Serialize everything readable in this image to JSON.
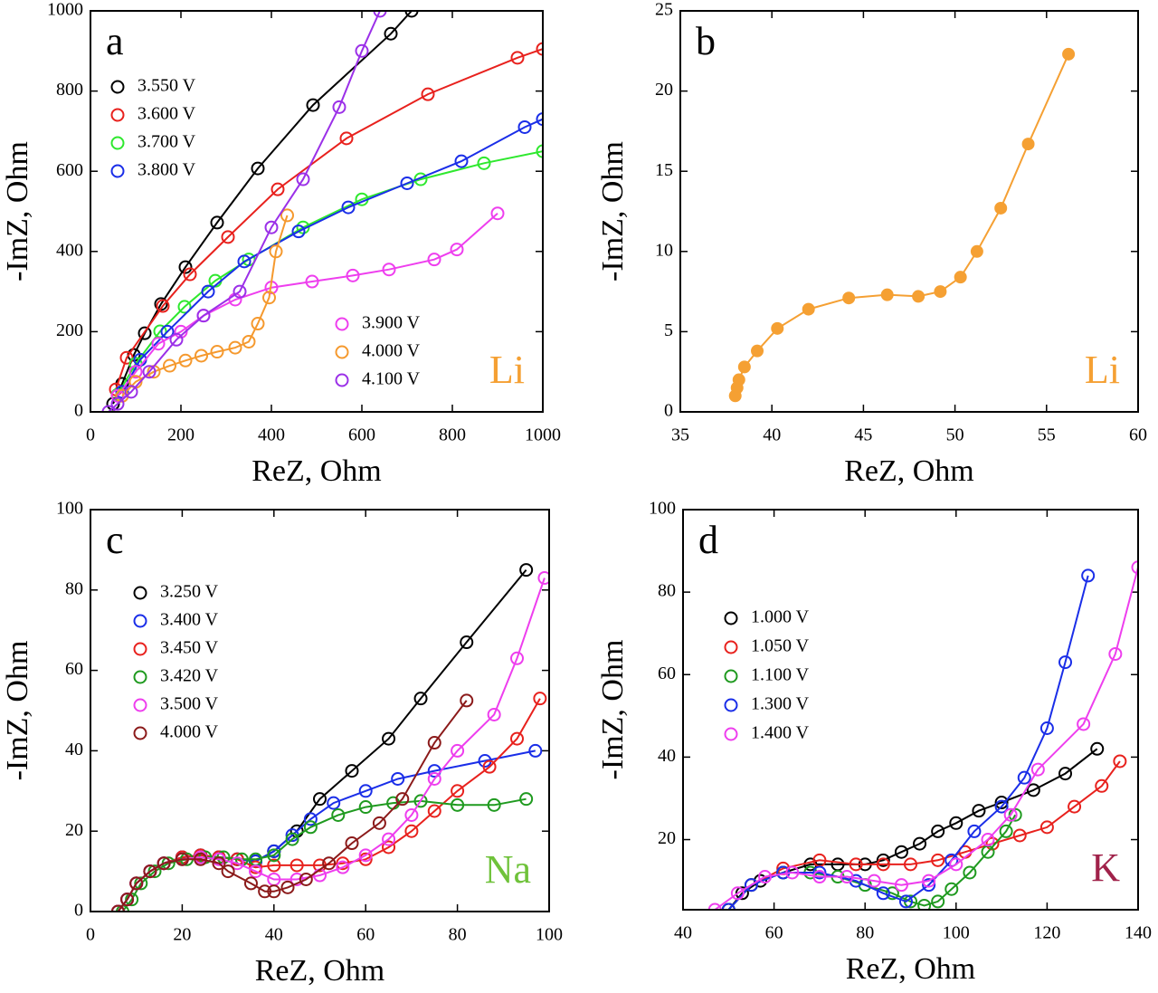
{
  "chart_data": [
    {
      "type": "line",
      "label": "a",
      "annotation": "Li",
      "annotation_color": "#f5a033",
      "marker": "open",
      "xlabel": "ReZ, Ohm",
      "ylabel": "-ImZ, Ohm",
      "xlim": [
        0,
        1000
      ],
      "xticks": [
        0,
        200,
        400,
        600,
        800,
        1000
      ],
      "ylim": [
        0,
        1000
      ],
      "yticks": [
        0,
        200,
        400,
        600,
        800,
        1000
      ],
      "series": [
        {
          "name": "3.550 V",
          "color": "#000000",
          "x": [
            50,
            70,
            96,
            120,
            156,
            210,
            280,
            370,
            492,
            664,
            710
          ],
          "values": [
            20,
            70,
            142,
            196,
            269,
            361,
            472,
            607,
            765,
            943,
            1000
          ]
        },
        {
          "name": "3.600 V",
          "color": "#e8211d",
          "x": [
            56,
            80,
            160,
            220,
            304,
            414,
            566,
            746,
            944,
            1000
          ],
          "values": [
            56,
            135,
            264,
            343,
            436,
            555,
            682,
            792,
            883,
            905
          ]
        },
        {
          "name": "3.700 V",
          "color": "#2ee82e",
          "x": [
            60,
            100,
            154,
            208,
            276,
            350,
            470,
            600,
            730,
            870,
            1000
          ],
          "values": [
            43,
            120,
            201,
            262,
            327,
            380,
            460,
            530,
            580,
            620,
            650
          ]
        },
        {
          "name": "3.800 V",
          "color": "#1a2ee8",
          "x": [
            70,
            110,
            170,
            260,
            340,
            460,
            570,
            700,
            820,
            960,
            1000
          ],
          "values": [
            50,
            130,
            200,
            300,
            375,
            450,
            510,
            570,
            625,
            710,
            730
          ]
        },
        {
          "name": "3.900 V",
          "color": "#ee3eee",
          "x": [
            60,
            100,
            150,
            200,
            250,
            320,
            400,
            490,
            580,
            660,
            760,
            810,
            900
          ],
          "values": [
            40,
            100,
            170,
            200,
            240,
            280,
            310,
            325,
            340,
            355,
            380,
            405,
            495
          ]
        },
        {
          "name": "4.000 V",
          "color": "#f5992e",
          "x": [
            70,
            100,
            140,
            175,
            210,
            245,
            280,
            320,
            350,
            370,
            395,
            410,
            435
          ],
          "values": [
            40,
            75,
            100,
            115,
            128,
            140,
            150,
            160,
            175,
            220,
            285,
            400,
            490
          ]
        },
        {
          "name": "4.100 V",
          "color": "#9b30e8",
          "x": [
            40,
            60,
            90,
            130,
            190,
            250,
            330,
            400,
            470,
            550,
            600,
            640
          ],
          "values": [
            0,
            20,
            50,
            100,
            180,
            240,
            300,
            460,
            580,
            760,
            900,
            1000
          ]
        }
      ]
    },
    {
      "type": "line",
      "label": "b",
      "annotation": "Li",
      "annotation_color": "#f5a033",
      "marker": "filled",
      "xlabel": "ReZ, Ohm",
      "ylabel": "-ImZ, Ohm",
      "xlim": [
        35,
        60
      ],
      "xticks": [
        35,
        40,
        45,
        50,
        55,
        60
      ],
      "ylim": [
        0,
        25
      ],
      "yticks": [
        0,
        5,
        10,
        15,
        20,
        25
      ],
      "series": [
        {
          "color": "#f5a033",
          "x": [
            38,
            38.1,
            38.2,
            38.5,
            39.2,
            40.3,
            42,
            44.2,
            46.3,
            48,
            49.2,
            50.3,
            51.2,
            52.5,
            54,
            56.2
          ],
          "values": [
            1,
            1.5,
            2,
            2.8,
            3.8,
            5.2,
            6.4,
            7.1,
            7.3,
            7.2,
            7.5,
            8.4,
            10,
            12.7,
            16.7,
            22.3
          ]
        }
      ]
    },
    {
      "type": "line",
      "label": "c",
      "annotation": "Na",
      "annotation_color": "#6fc23a",
      "marker": "open",
      "xlabel": "ReZ, Ohm",
      "ylabel": "-ImZ, Ohm",
      "xlim": [
        0,
        100
      ],
      "xticks": [
        0,
        20,
        40,
        60,
        80,
        100
      ],
      "ylim": [
        0,
        100
      ],
      "yticks": [
        0,
        20,
        40,
        60,
        80,
        100
      ],
      "series": [
        {
          "name": "3.250 V",
          "color": "#000000",
          "x": [
            6,
            8,
            10,
            13,
            16,
            20,
            24,
            28,
            32,
            36,
            40,
            45,
            50,
            57,
            65,
            72,
            82,
            95
          ],
          "values": [
            0,
            3,
            7,
            10,
            12,
            13.5,
            14,
            13.5,
            13,
            12.5,
            15,
            20,
            28,
            35,
            43,
            53,
            67,
            85
          ]
        },
        {
          "name": "3.400 V",
          "color": "#1a2ee8",
          "x": [
            6,
            8,
            10,
            13,
            16,
            20,
            24,
            28,
            32,
            36,
            40,
            44,
            48,
            53,
            60,
            67,
            75,
            86,
            97
          ],
          "values": [
            0,
            3,
            7,
            10,
            12,
            13.5,
            14,
            13.5,
            13,
            12.5,
            15,
            19,
            23,
            27,
            30,
            33,
            35,
            37.5,
            40
          ]
        },
        {
          "name": "3.450 V",
          "color": "#e8211d",
          "x": [
            6,
            8,
            10,
            13,
            16,
            20,
            24,
            28,
            32,
            36,
            40,
            45,
            50,
            55,
            60,
            65,
            70,
            75,
            80,
            87,
            93,
            98
          ],
          "values": [
            0,
            3,
            7,
            10,
            12,
            13.5,
            14,
            13.5,
            13,
            11,
            11.5,
            11.5,
            11.5,
            12,
            13,
            16,
            20,
            25,
            30,
            36,
            43,
            53
          ]
        },
        {
          "name": "3.420 V",
          "color": "#1f9a1f",
          "x": [
            7,
            9,
            11,
            14,
            17,
            21,
            25,
            29,
            33,
            36,
            40,
            44,
            48,
            54,
            60,
            66,
            72,
            80,
            88,
            95
          ],
          "values": [
            0,
            3,
            7,
            10,
            12,
            13,
            13.5,
            13.5,
            13,
            13,
            14,
            18,
            21,
            24,
            26,
            27,
            27.5,
            26.5,
            26.5,
            28
          ]
        },
        {
          "name": "3.500 V",
          "color": "#ee3eee",
          "x": [
            6,
            8,
            10,
            13,
            16,
            20,
            24,
            28,
            32,
            36,
            40,
            45,
            50,
            55,
            60,
            65,
            70,
            75,
            80,
            88,
            93,
            99
          ],
          "values": [
            0,
            3,
            7,
            10,
            12,
            13,
            13.5,
            13,
            12,
            10,
            8,
            8,
            9,
            11,
            14,
            18,
            24,
            33,
            40,
            49,
            63,
            83
          ]
        },
        {
          "name": "4.000 V",
          "color": "#8b1a1a",
          "x": [
            6,
            8,
            10,
            13,
            16,
            20,
            24,
            28,
            30,
            35,
            38,
            40,
            43,
            47,
            52,
            57,
            63,
            68,
            75,
            82
          ],
          "values": [
            0,
            3,
            7,
            10,
            12,
            13,
            13,
            12,
            10,
            7,
            5,
            5,
            6,
            8,
            12,
            17,
            22,
            28,
            42,
            52.5
          ]
        }
      ]
    },
    {
      "type": "line",
      "label": "d",
      "annotation": "K",
      "annotation_color": "#a0224a",
      "marker": "open",
      "xlabel": "ReZ, Ohm",
      "ylabel": "-ImZ, Ohm",
      "xlim": [
        40,
        140
      ],
      "xticks": [
        40,
        60,
        80,
        100,
        120,
        140
      ],
      "ylim": [
        3,
        100
      ],
      "yticks": [
        20,
        40,
        60,
        80,
        100
      ],
      "series": [
        {
          "name": "1.000 V",
          "color": "#000000",
          "x": [
            50,
            53,
            57,
            62,
            68,
            74,
            80,
            84,
            88,
            92,
            96,
            100,
            105,
            110,
            117,
            124,
            131
          ],
          "values": [
            3,
            7,
            10,
            12,
            14,
            14,
            14,
            15,
            17,
            19,
            22,
            24,
            27,
            29,
            32,
            36,
            42
          ]
        },
        {
          "name": "1.050 V",
          "color": "#e8211d",
          "x": [
            50,
            55,
            62,
            70,
            78,
            84,
            90,
            96,
            102,
            108,
            114,
            120,
            126,
            132,
            136
          ],
          "values": [
            3,
            9,
            13,
            15,
            14,
            14,
            14,
            15,
            17,
            19,
            21,
            23,
            28,
            33,
            39
          ]
        },
        {
          "name": "1.100 V",
          "color": "#1f9a1f",
          "x": [
            50,
            55,
            62,
            68,
            74,
            80,
            86,
            90,
            93,
            96,
            99,
            103,
            107,
            111,
            113
          ],
          "values": [
            3,
            9,
            12,
            12,
            11,
            9,
            7,
            5,
            4,
            5,
            8,
            12,
            17,
            22,
            26
          ]
        },
        {
          "name": "1.300 V",
          "color": "#1a2ee8",
          "x": [
            50,
            55,
            62,
            70,
            78,
            84,
            89,
            94,
            99,
            104,
            110,
            115,
            120,
            124,
            129
          ],
          "values": [
            3,
            9,
            12,
            12,
            10,
            7,
            5,
            9,
            15,
            22,
            28,
            35,
            47,
            63,
            84
          ]
        },
        {
          "name": "1.400 V",
          "color": "#ee3eee",
          "x": [
            47,
            52,
            58,
            64,
            70,
            76,
            82,
            88,
            94,
            100,
            107,
            112,
            118,
            128,
            135,
            140
          ],
          "values": [
            3,
            7,
            11,
            12,
            11,
            11,
            10,
            9,
            10,
            14,
            20,
            26,
            37,
            48,
            65,
            86
          ]
        }
      ]
    }
  ]
}
